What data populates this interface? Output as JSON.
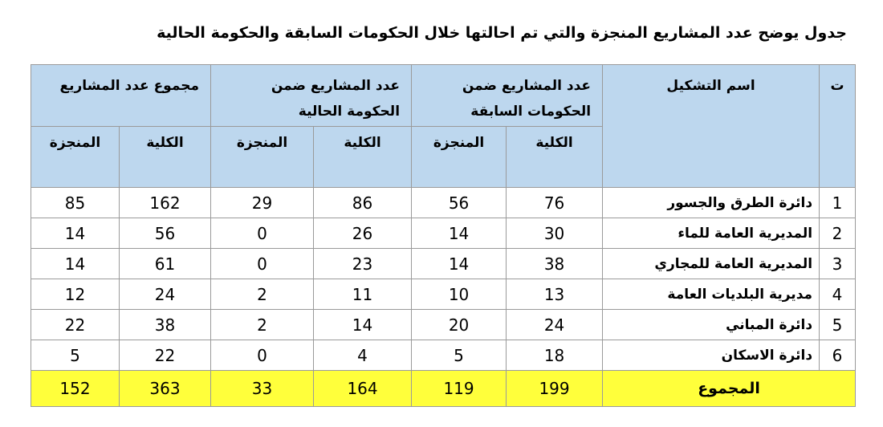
{
  "table": {
    "title": "جدول يوضح عدد المشاريع المنجزة والتي تم احالتها خلال الحكومات السابقة والحكومة الحالية",
    "header": {
      "index": "ت",
      "name": "اسم التشكيل",
      "groups": [
        {
          "label": "عدد المشاريع ضمن الحكومات السابقة",
          "sub": [
            "الكلية",
            "المنجزة"
          ]
        },
        {
          "label": "عدد المشاريع ضمن الحكومة الحالية",
          "sub": [
            "الكلية",
            "المنجزة"
          ]
        },
        {
          "label": "مجموع عدد المشاريع",
          "sub": [
            "الكلية",
            "المنجزة"
          ]
        }
      ]
    },
    "rows": [
      [
        1,
        "دائرة الطرق والجسور",
        76,
        56,
        86,
        29,
        162,
        85
      ],
      [
        2,
        "المديرية العامة للماء",
        30,
        14,
        26,
        0,
        56,
        14
      ],
      [
        3,
        "المديرية العامة للمجاري",
        38,
        14,
        23,
        0,
        61,
        14
      ],
      [
        4,
        "مديرية البلديات العامة",
        13,
        10,
        11,
        2,
        24,
        12
      ],
      [
        5,
        "دائرة المباني",
        24,
        20,
        14,
        2,
        38,
        22
      ],
      [
        6,
        "دائرة الاسكان",
        18,
        5,
        4,
        0,
        22,
        5
      ]
    ],
    "total": {
      "label": "المجموع",
      "values": [
        199,
        119,
        164,
        33,
        363,
        152
      ]
    }
  }
}
